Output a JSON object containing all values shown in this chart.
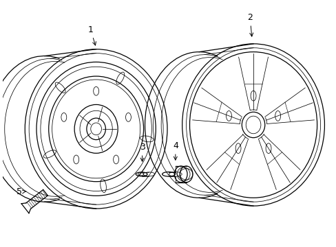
{
  "background_color": "#ffffff",
  "line_color": "#000000",
  "lw": 0.9,
  "tlw": 0.55,
  "figsize": [
    4.89,
    3.6
  ],
  "dpi": 100,
  "w1cx": 1.18,
  "w1cy": 1.72,
  "w2cx": 3.55,
  "w2cy": 1.78
}
